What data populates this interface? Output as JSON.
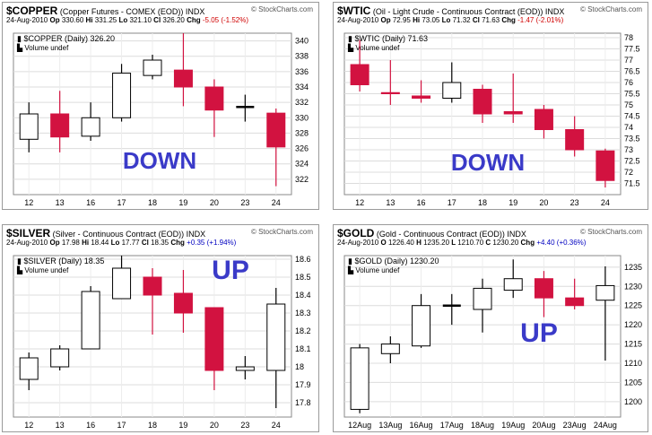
{
  "panels": [
    {
      "key": "copper",
      "symbol": "$COPPER",
      "description": "(Copper Futures - COMEX (EOD)) INDX",
      "logo": "© StockCharts.com",
      "date": "24-Aug-2010",
      "quote": {
        "op": "330.60",
        "hi": "331.25",
        "lo": "321.10",
        "cl": "326.20",
        "chg": "-5.05 (-1.52%)"
      },
      "chg_dir": "down",
      "legend1": "$COPPER (Daily) 326.20",
      "legend2": "Volume undef",
      "annotation": "DOWN",
      "annotation_color": "#3a3ac8",
      "colors": {
        "up": "#ffffff",
        "down": "#d21240",
        "neutral": "#000000"
      },
      "chart_data": {
        "type": "candlestick",
        "categories": [
          "12",
          "13",
          "16",
          "17",
          "18",
          "19",
          "20",
          "23",
          "24"
        ],
        "ylim": [
          320,
          341
        ],
        "yticks": [
          322,
          324,
          326,
          328,
          330,
          332,
          334,
          336,
          338,
          340
        ],
        "series": [
          {
            "o": 327.2,
            "h": 332.0,
            "l": 325.5,
            "c": 330.5
          },
          {
            "o": 330.5,
            "h": 333.5,
            "l": 325.5,
            "c": 327.5
          },
          {
            "o": 327.6,
            "h": 332.0,
            "l": 327.0,
            "c": 330.0
          },
          {
            "o": 330.0,
            "h": 337.0,
            "l": 329.5,
            "c": 335.8
          },
          {
            "o": 335.5,
            "h": 338.2,
            "l": 335.0,
            "c": 337.5
          },
          {
            "o": 336.2,
            "h": 341.0,
            "l": 331.5,
            "c": 334.0
          },
          {
            "o": 334.0,
            "h": 335.0,
            "l": 327.5,
            "c": 331.0
          },
          {
            "o": 331.4,
            "h": 333.0,
            "l": 329.5,
            "c": 331.4
          },
          {
            "o": 330.6,
            "h": 331.2,
            "l": 321.1,
            "c": 326.2
          }
        ]
      }
    },
    {
      "key": "wtic",
      "symbol": "$WTIC",
      "description": "(Oil - Light Crude - Continuous Contract (EOD)) INDX",
      "logo": "© StockCharts.com",
      "date": "24-Aug-2010",
      "quote": {
        "op": "72.95",
        "hi": "73.05",
        "lo": "71.32",
        "cl": "71.63",
        "chg": "-1.47 (-2.01%)"
      },
      "chg_dir": "down",
      "legend1": "$WTIC (Daily) 71.63",
      "legend2": "Volume undef",
      "annotation": "DOWN",
      "annotation_color": "#3a3ac8",
      "colors": {
        "up": "#ffffff",
        "down": "#d21240",
        "neutral": "#000000"
      },
      "chart_data": {
        "type": "candlestick",
        "categories": [
          "12",
          "13",
          "16",
          "17",
          "18",
          "19",
          "20",
          "23",
          "24"
        ],
        "ylim": [
          71.0,
          78.2
        ],
        "yticks": [
          71.5,
          72.0,
          72.5,
          73.0,
          73.5,
          74.0,
          74.5,
          75.0,
          75.5,
          76.0,
          76.5,
          77.0,
          77.5,
          78.0
        ],
        "series": [
          {
            "o": 76.8,
            "h": 77.9,
            "l": 75.6,
            "c": 75.9
          },
          {
            "o": 75.55,
            "h": 77.0,
            "l": 75.0,
            "c": 75.5
          },
          {
            "o": 75.4,
            "h": 76.1,
            "l": 75.1,
            "c": 75.3
          },
          {
            "o": 75.3,
            "h": 76.9,
            "l": 75.1,
            "c": 76.0
          },
          {
            "o": 75.7,
            "h": 75.9,
            "l": 74.2,
            "c": 74.6
          },
          {
            "o": 74.7,
            "h": 76.4,
            "l": 74.2,
            "c": 74.6
          },
          {
            "o": 74.8,
            "h": 75.0,
            "l": 73.5,
            "c": 73.9
          },
          {
            "o": 73.9,
            "h": 74.5,
            "l": 72.7,
            "c": 73.0
          },
          {
            "o": 72.95,
            "h": 73.05,
            "l": 71.32,
            "c": 71.63
          }
        ]
      }
    },
    {
      "key": "silver",
      "symbol": "$SILVER",
      "description": "(Silver - Continuous Contract (EOD)) INDX",
      "logo": "© StockCharts.com",
      "date": "24-Aug-2010",
      "quote": {
        "op": "17.98",
        "hi": "18.44",
        "lo": "17.77",
        "cl": "18.35",
        "chg": "+0.35 (+1.94%)"
      },
      "chg_dir": "up",
      "legend1": "$SILVER (Daily) 18.35",
      "legend2": "Volume undef",
      "annotation": "UP",
      "annotation_color": "#3a3ac8",
      "colors": {
        "up": "#ffffff",
        "down": "#d21240",
        "neutral": "#000000"
      },
      "chart_data": {
        "type": "candlestick",
        "categories": [
          "12",
          "13",
          "16",
          "17",
          "18",
          "19",
          "20",
          "23",
          "24"
        ],
        "ylim": [
          17.72,
          18.62
        ],
        "yticks": [
          17.8,
          17.9,
          18.0,
          18.1,
          18.2,
          18.3,
          18.4,
          18.5,
          18.6
        ],
        "series": [
          {
            "o": 17.93,
            "h": 18.08,
            "l": 17.87,
            "c": 18.05
          },
          {
            "o": 18.0,
            "h": 18.12,
            "l": 17.98,
            "c": 18.1
          },
          {
            "o": 18.1,
            "h": 18.45,
            "l": 18.1,
            "c": 18.42
          },
          {
            "o": 18.38,
            "h": 18.62,
            "l": 18.38,
            "c": 18.55
          },
          {
            "o": 18.5,
            "h": 18.55,
            "l": 18.18,
            "c": 18.4
          },
          {
            "o": 18.41,
            "h": 18.54,
            "l": 18.19,
            "c": 18.3
          },
          {
            "o": 18.33,
            "h": 18.33,
            "l": 17.87,
            "c": 17.98
          },
          {
            "o": 17.98,
            "h": 18.06,
            "l": 17.93,
            "c": 18.0
          },
          {
            "o": 17.98,
            "h": 18.44,
            "l": 17.77,
            "c": 18.35
          }
        ]
      }
    },
    {
      "key": "gold",
      "symbol": "$GOLD",
      "description": "(Gold - Continuous Contract (EOD)) INDX",
      "logo": "© StockCharts.com",
      "date": "24-Aug-2010",
      "quote_style": "short",
      "quote": {
        "op": "1226.40",
        "hi": "1235.20",
        "lo": "1210.70",
        "cl": "1230.20",
        "chg": "+4.40 (+0.36%)"
      },
      "chg_dir": "up",
      "legend1": "$GOLD (Daily) 1230.20",
      "legend2": "Volume undef",
      "annotation": "UP",
      "annotation_color": "#3a3ac8",
      "colors": {
        "up": "#ffffff",
        "down": "#d21240",
        "neutral": "#000000"
      },
      "chart_data": {
        "type": "candlestick",
        "categories": [
          "12Aug",
          "13Aug",
          "16Aug",
          "17Aug",
          "18Aug",
          "19Aug",
          "20Aug",
          "23Aug",
          "24Aug"
        ],
        "ylim": [
          1196,
          1238
        ],
        "yticks": [
          1200,
          1205,
          1210,
          1215,
          1220,
          1225,
          1230,
          1235
        ],
        "series": [
          {
            "o": 1198.0,
            "h": 1215.0,
            "l": 1197.0,
            "c": 1214.0
          },
          {
            "o": 1212.5,
            "h": 1217.0,
            "l": 1210.0,
            "c": 1215.0
          },
          {
            "o": 1214.5,
            "h": 1228.0,
            "l": 1214.0,
            "c": 1225.0
          },
          {
            "o": 1225.0,
            "h": 1228.0,
            "l": 1220.0,
            "c": 1225.0
          },
          {
            "o": 1224.0,
            "h": 1232.0,
            "l": 1218.0,
            "c": 1229.5
          },
          {
            "o": 1229.0,
            "h": 1237.0,
            "l": 1227.0,
            "c": 1232.0
          },
          {
            "o": 1232.0,
            "h": 1234.0,
            "l": 1222.0,
            "c": 1227.0
          },
          {
            "o": 1227.0,
            "h": 1232.0,
            "l": 1224.0,
            "c": 1225.0
          },
          {
            "o": 1226.4,
            "h": 1235.2,
            "l": 1210.7,
            "c": 1230.2
          }
        ]
      }
    }
  ]
}
